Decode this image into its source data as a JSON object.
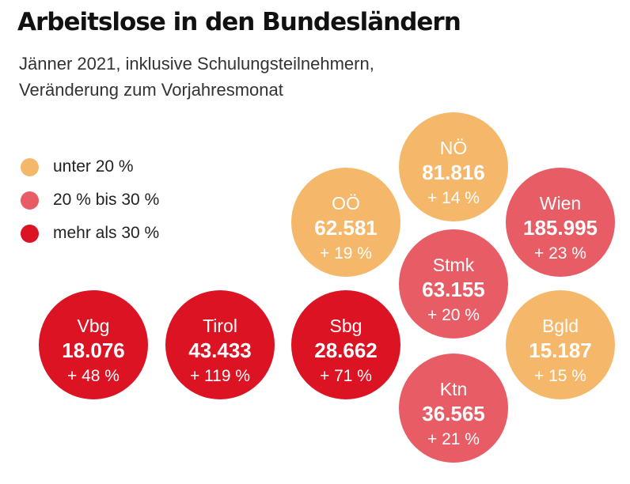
{
  "title": "Arbeitslose in den Bundesländern",
  "subtitle_lines": [
    "Jänner 2021, inklusive Schulungsteilnehmern,",
    "Veränderung zum Vorjahresmonat"
  ],
  "colors": {
    "low": "#f5b86b",
    "mid": "#e85c66",
    "high": "#dc1323"
  },
  "legend": [
    {
      "label": "unter 20 %",
      "color": "#f5b86b"
    },
    {
      "label": "20 % bis 30 %",
      "color": "#e85c66"
    },
    {
      "label": "mehr als 30 %",
      "color": "#dc1323"
    }
  ],
  "chart_data": {
    "type": "bubble",
    "series": [
      {
        "name": "NÖ",
        "value": "81.816",
        "change": "+ 14 %",
        "change_pct": 14,
        "category": "low"
      },
      {
        "name": "OÖ",
        "value": "62.581",
        "change": "+ 19 %",
        "change_pct": 19,
        "category": "low"
      },
      {
        "name": "Wien",
        "value": "185.995",
        "change": "+ 23 %",
        "change_pct": 23,
        "category": "mid"
      },
      {
        "name": "Stmk",
        "value": "63.155",
        "change": "+ 20 %",
        "change_pct": 20,
        "category": "mid"
      },
      {
        "name": "Vbg",
        "value": "18.076",
        "change": "+ 48 %",
        "change_pct": 48,
        "category": "high"
      },
      {
        "name": "Tirol",
        "value": "43.433",
        "change": "+ 119 %",
        "change_pct": 119,
        "category": "high"
      },
      {
        "name": "Sbg",
        "value": "28.662",
        "change": "+ 71 %",
        "change_pct": 71,
        "category": "high"
      },
      {
        "name": "Bgld",
        "value": "15.187",
        "change": "+ 15 %",
        "change_pct": 15,
        "category": "low"
      },
      {
        "name": "Ktn",
        "value": "36.565",
        "change": "+ 21 %",
        "change_pct": 21,
        "category": "mid"
      }
    ]
  }
}
